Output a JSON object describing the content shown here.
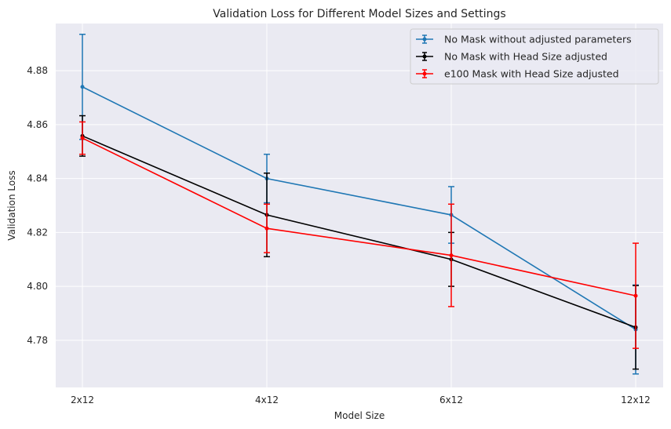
{
  "chart_data": {
    "type": "line",
    "title": "Validation Loss for Different Model Sizes and Settings",
    "xlabel": "Model Size",
    "ylabel": "Validation Loss",
    "categories": [
      "2x12",
      "4x12",
      "6x12",
      "12x12"
    ],
    "ylim": [
      4.7625,
      4.8975
    ],
    "yticks": [
      4.78,
      4.8,
      4.82,
      4.84,
      4.86,
      4.88
    ],
    "ytick_labels": [
      "4.78",
      "4.80",
      "4.82",
      "4.84",
      "4.86",
      "4.88"
    ],
    "grid": true,
    "legend_position": "top-right",
    "series": [
      {
        "name": "No Mask without adjusted parameters",
        "color": "#1f77b4",
        "values": [
          4.874,
          4.84,
          4.8265,
          4.784
        ],
        "errors": [
          0.0195,
          0.009,
          0.0105,
          0.0165
        ]
      },
      {
        "name": "No Mask with Head Size adjusted",
        "color": "#000000",
        "values": [
          4.8558,
          4.8265,
          4.81,
          4.7848
        ],
        "errors": [
          0.0075,
          0.0155,
          0.01,
          0.0155
        ]
      },
      {
        "name": "e100 Mask with Head Size adjusted",
        "color": "#ff0000",
        "values": [
          4.855,
          4.8215,
          4.8115,
          4.7965
        ],
        "errors": [
          0.006,
          0.009,
          0.019,
          0.0195
        ]
      }
    ]
  }
}
